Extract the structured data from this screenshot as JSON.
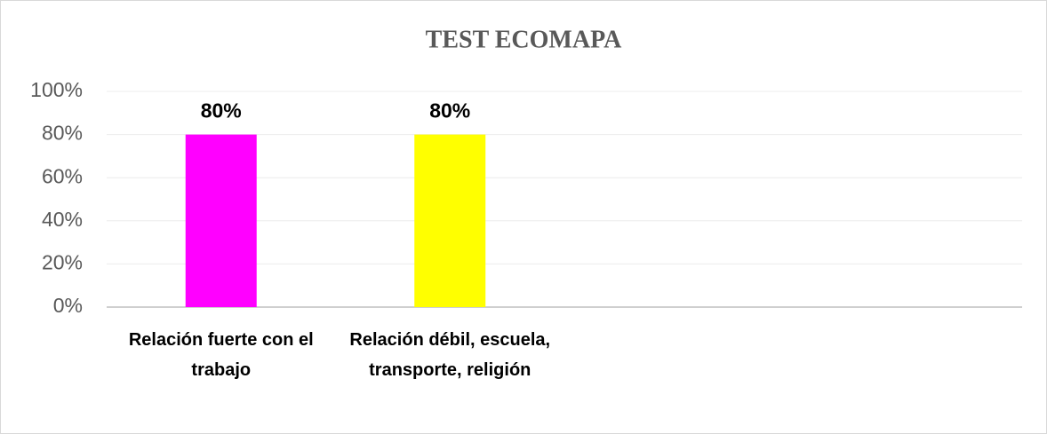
{
  "chart_data": {
    "type": "bar",
    "title": "TEST ECOMAPA",
    "categories": [
      "Relación fuerte con el trabajo",
      "Relación débil, escuela, transporte, religión",
      null,
      null
    ],
    "values": [
      80,
      80,
      null,
      null
    ],
    "value_labels": [
      "80%",
      "80%",
      null,
      null
    ],
    "colors": [
      "#ff00ff",
      "#ffff00",
      null,
      null
    ],
    "ylim": [
      0,
      100
    ],
    "yticks": [
      {
        "value": 0,
        "label": "0%"
      },
      {
        "value": 20,
        "label": "20%"
      },
      {
        "value": 40,
        "label": "40%"
      },
      {
        "value": 60,
        "label": "60%"
      },
      {
        "value": 80,
        "label": "80%"
      },
      {
        "value": 100,
        "label": "100%"
      }
    ],
    "grid": true
  }
}
